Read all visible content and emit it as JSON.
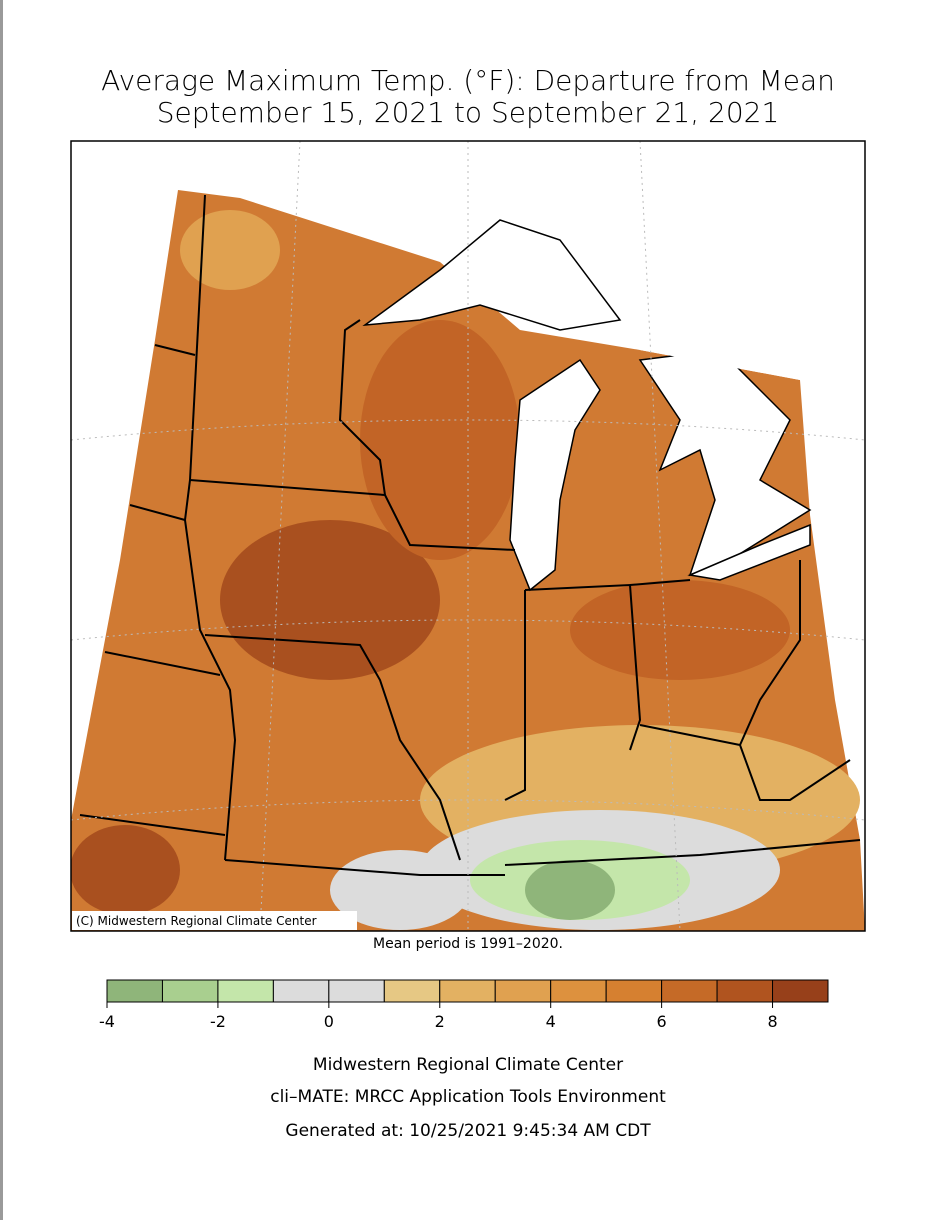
{
  "header": {
    "title": "Average Maximum Temp. (°F): Departure from Mean",
    "subtitle": "September 15, 2021 to September 21, 2021"
  },
  "map": {
    "credit": "(C) Midwestern Regional Climate Center",
    "note": "Mean period is 1991–2020."
  },
  "legend": {
    "bins": [
      -4,
      -3,
      -2,
      -1,
      0,
      1,
      2,
      3,
      4,
      5,
      6,
      7,
      8,
      9
    ],
    "colors": [
      "#8fb57a",
      "#a9cf8f",
      "#c4e6aa",
      "#dcdcdc",
      "#dcdcdc",
      "#e6c884",
      "#e3b162",
      "#e0a150",
      "#dd913e",
      "#d68030",
      "#c56a27",
      "#b0541f",
      "#97401a"
    ],
    "ticks": [
      -4,
      -2,
      0,
      2,
      4,
      6,
      8
    ]
  },
  "footer": {
    "lines": [
      "Midwestern Regional Climate Center",
      "cli–MATE: MRCC Application Tools Environment",
      "Generated at: 10/25/2021 9:45:34 AM CDT"
    ]
  }
}
